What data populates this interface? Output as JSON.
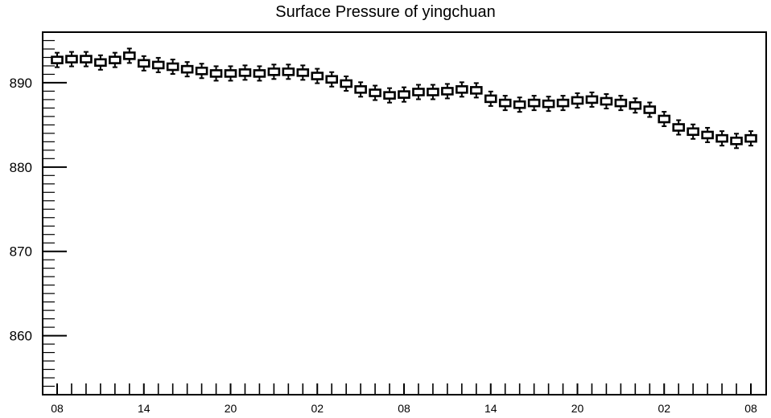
{
  "chart_data": {
    "type": "boxplot",
    "title": "Surface Pressure of yingchuan",
    "xlabel": "",
    "ylabel": "",
    "ylim": [
      853,
      896
    ],
    "yticks": [
      860,
      870,
      880,
      890
    ],
    "xtick_labels": [
      "08",
      "14",
      "20",
      "02",
      "08",
      "14",
      "20",
      "02",
      "08"
    ],
    "grid": false,
    "x": [
      0,
      1,
      2,
      3,
      4,
      5,
      6,
      7,
      8,
      9,
      10,
      11,
      12,
      13,
      14,
      15,
      16,
      17,
      18,
      19,
      20,
      21,
      22,
      23,
      24,
      25,
      26,
      27,
      28,
      29,
      30,
      31,
      32,
      33,
      34,
      35,
      36,
      37,
      38,
      39,
      40,
      41,
      42,
      43,
      44,
      45,
      46,
      47,
      48
    ],
    "values": [
      892.7,
      892.8,
      892.8,
      892.4,
      892.7,
      893.2,
      892.3,
      892.1,
      891.9,
      891.6,
      891.4,
      891.1,
      891.1,
      891.2,
      891.1,
      891.3,
      891.3,
      891.2,
      890.8,
      890.4,
      889.9,
      889.2,
      888.8,
      888.5,
      888.6,
      888.9,
      888.9,
      889.0,
      889.2,
      889.1,
      888.1,
      887.6,
      887.4,
      887.6,
      887.5,
      887.6,
      887.9,
      888.0,
      887.8,
      887.6,
      887.3,
      886.8,
      885.7,
      884.7,
      884.2,
      883.8,
      883.4,
      883.1,
      883.4
    ]
  }
}
